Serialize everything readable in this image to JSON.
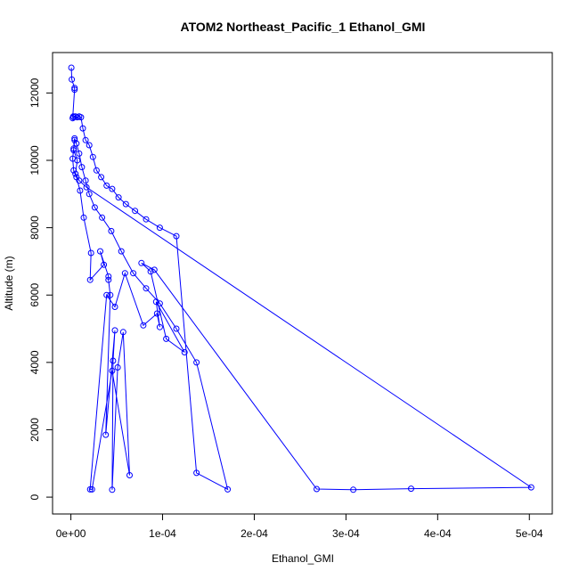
{
  "chart_data": {
    "type": "line",
    "title": "ATOM2 Northeast_Pacific_1 Ethanol_GMI",
    "xlabel": "Ethanol_GMI",
    "ylabel": "Altitude (m)",
    "xlim": [
      -2e-05,
      0.000525
    ],
    "ylim": [
      -500,
      13200
    ],
    "x_ticks": [
      0,
      0.0001,
      0.0002,
      0.0003,
      0.0004,
      0.0005
    ],
    "x_tick_labels": [
      "0e+00",
      "1e-04",
      "2e-04",
      "3e-04",
      "4e-04",
      "5e-04"
    ],
    "y_ticks": [
      0,
      2000,
      4000,
      6000,
      8000,
      10000,
      12000
    ],
    "y_tick_labels": [
      "0",
      "2000",
      "4000",
      "6000",
      "8000",
      "10000",
      "12000"
    ],
    "grid": false,
    "legend": "none",
    "colors": {
      "series": "#0000ff",
      "axis": "#000000"
    },
    "series": [
      {
        "x": [
          5e-07,
          1e-06,
          4e-06,
          4e-06,
          2e-06,
          2.5e-06,
          3e-06,
          5e-06,
          7e-06,
          9e-06,
          1.1e-05,
          1.3e-05,
          1.6e-05,
          2e-05,
          2.4e-05,
          2.8e-05,
          3.3e-05,
          3.9e-05,
          4.5e-05,
          5.2e-05,
          6e-05,
          7e-05,
          8.2e-05,
          9.7e-05,
          0.000115,
          0.000137,
          0.000171,
          0.000137,
          0.000115,
          9.7e-05,
          8.2e-05,
          6.8e-05,
          5.5e-05,
          4.4e-05,
          3.4e-05,
          2.6e-05,
          2e-05,
          1.6e-05,
          1.2e-05,
          9e-06,
          6e-06,
          4e-06,
          3e-06,
          2e-06,
          3e-06,
          6e-06,
          1e-05,
          1.4e-05,
          2.2e-05,
          2.1e-05,
          3.6e-05,
          3.2e-05,
          4.1e-05,
          4.1e-05,
          4.3e-05,
          3.8e-05,
          4.8e-05,
          4.6e-05,
          4.5e-05,
          5.1e-05,
          5.7e-05,
          6.4e-05,
          4.5e-05,
          2.3e-05,
          2.1e-05,
          3.9e-05,
          4.8e-05,
          5.9e-05,
          7.9e-05,
          9.4e-05,
          9.7e-05,
          9.3e-05,
          0.000124,
          0.000104,
          8.7e-05,
          7.7e-05,
          9.1e-05,
          0.000268,
          0.000308,
          0.000371,
          0.000502,
          1.7e-05,
          9e-06,
          5e-06,
          7e-06,
          3e-06,
          4e-06
        ],
        "y": [
          12750,
          12400,
          12150,
          12100,
          11250,
          11300,
          11280,
          11300,
          11280,
          11300,
          11280,
          10950,
          10600,
          10450,
          10100,
          9700,
          9500,
          9250,
          9150,
          8900,
          8700,
          8500,
          8250,
          8000,
          7750,
          720,
          230,
          4000,
          5000,
          5750,
          6200,
          6650,
          7300,
          7900,
          8300,
          8600,
          9000,
          9400,
          9800,
          10200,
          10500,
          10650,
          10350,
          10050,
          9700,
          9500,
          9100,
          8300,
          7250,
          6450,
          6900,
          7300,
          6550,
          6450,
          6000,
          1850,
          4950,
          4050,
          220,
          3850,
          4900,
          650,
          3750,
          230,
          230,
          6000,
          5650,
          6650,
          5100,
          5450,
          5050,
          5800,
          4300,
          4700,
          6700,
          6950,
          6750,
          240,
          220,
          250,
          290,
          9200,
          9400,
          9600,
          10000,
          10300,
          10600
        ]
      }
    ]
  }
}
